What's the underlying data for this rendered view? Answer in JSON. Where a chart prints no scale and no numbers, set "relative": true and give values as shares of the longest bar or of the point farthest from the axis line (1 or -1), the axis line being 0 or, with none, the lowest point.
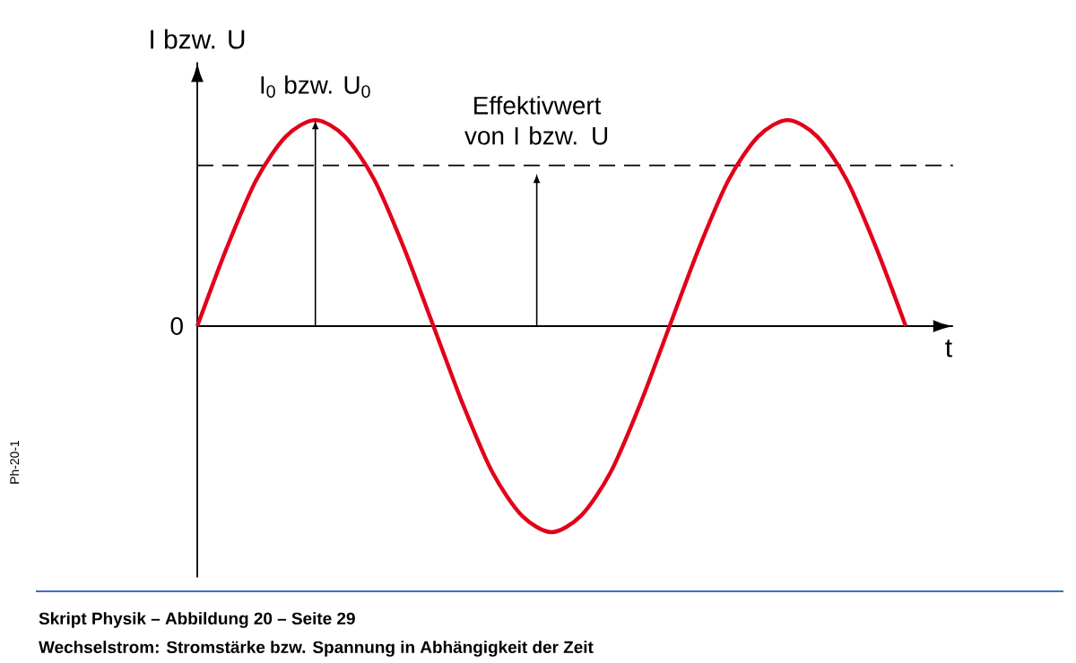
{
  "chart_data": {
    "type": "line",
    "relative": true,
    "title": "Skript Physik – Abbildung 20 – Seite 29",
    "subtitle": "Wechselstrom: Stromstärke bzw. Spannung in Abhängigkeit der Zeit",
    "xlabel": "t",
    "ylabel": "I bzw. U",
    "categories": [
      null,
      null,
      null,
      null,
      null,
      null,
      null,
      null,
      null,
      null,
      null,
      null,
      null,
      null,
      null,
      null,
      null,
      null,
      null,
      null,
      null,
      null,
      null,
      null,
      null
    ],
    "series": [
      {
        "color": "#e2001a",
        "line_style": "solid",
        "values": [
          0,
          0.38,
          0.71,
          0.92,
          1,
          0.92,
          0.71,
          0.38,
          0,
          -0.38,
          -0.71,
          -0.92,
          -1,
          -0.92,
          -0.71,
          -0.38,
          0,
          0.38,
          0.71,
          0.92,
          1,
          0.92,
          0.71,
          0.38,
          0
        ]
      }
    ],
    "ref_lines": [
      {
        "axis": "y",
        "value": 0.78,
        "color": "#000000",
        "line_style": "dashed"
      }
    ],
    "annotations": [
      {
        "text": "I$_{0}$ bzw. U$_{0}$",
        "y": 1
      },
      {
        "text": "Effektivwert von I bzw. U",
        "y": 0.78
      },
      "0",
      "Ph-20-1"
    ]
  }
}
